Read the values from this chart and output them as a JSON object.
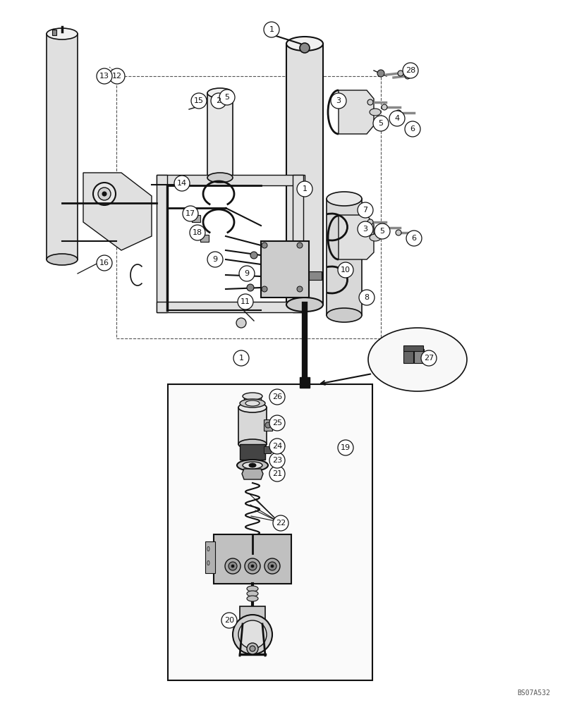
{
  "watermark": "BS07A532",
  "bg": "#ffffff",
  "fw": 8.12,
  "fh": 10.0,
  "dpi": 100
}
